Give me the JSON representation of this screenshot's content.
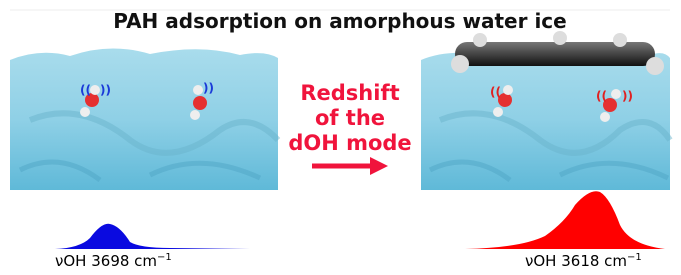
{
  "title": "PAH adsorption on amorphous water ice",
  "center_text": {
    "lines": [
      "Redshift",
      "of the",
      "dOH mode"
    ]
  },
  "left_label": {
    "text": "νOH 3698 cm",
    "superscript": "−1"
  },
  "right_label": {
    "text": "νOH 3618 cm",
    "superscript": "−1"
  }
}
